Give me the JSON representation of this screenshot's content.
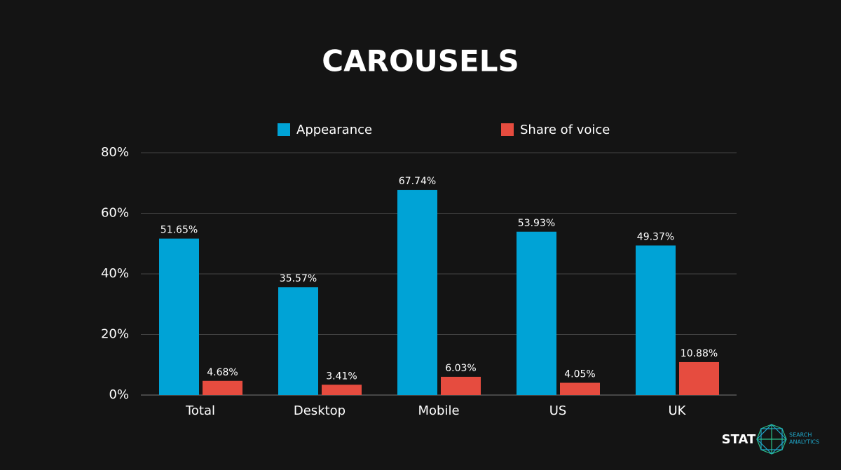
{
  "chart_data": {
    "type": "grouped-bar",
    "title": "CAROUSELS",
    "categories": [
      "Total",
      "Desktop",
      "Mobile",
      "US",
      "UK"
    ],
    "series": [
      {
        "name": "Appearance",
        "color": "#00a3d6",
        "values": [
          51.65,
          35.57,
          67.74,
          53.93,
          49.37
        ],
        "value_labels": [
          "51.65%",
          "35.57%",
          "67.74%",
          "53.93%",
          "49.37%"
        ]
      },
      {
        "name": "Share of voice",
        "color": "#e64c3f",
        "values": [
          4.68,
          3.41,
          6.03,
          4.05,
          10.88
        ],
        "value_labels": [
          "4.68%",
          "3.41%",
          "6.03%",
          "4.05%",
          "10.88%"
        ]
      }
    ],
    "ylim": [
      0,
      80
    ],
    "yticks": [
      {
        "value": 0,
        "label": "0%"
      },
      {
        "value": 20,
        "label": "20%"
      },
      {
        "value": 40,
        "label": "40%"
      },
      {
        "value": 60,
        "label": "60%"
      },
      {
        "value": 80,
        "label": "80%"
      }
    ],
    "grid": true,
    "legend": "top"
  },
  "logo": {
    "name": "STAT",
    "tagline": [
      "SEARCH",
      "ANALYTICS"
    ]
  }
}
